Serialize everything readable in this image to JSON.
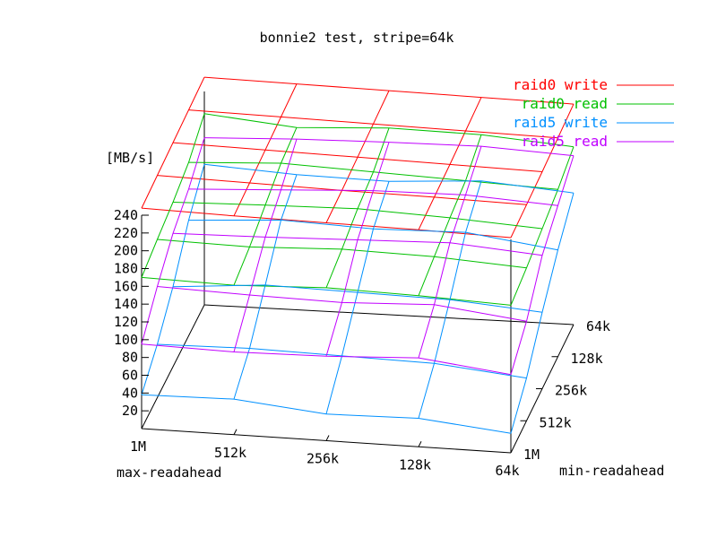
{
  "chart_data": {
    "type": "surface3d",
    "title": "bonnie2 test, stripe=64k",
    "xlabel": "max-readahead",
    "ylabel": "min-readahead",
    "zlabel": "[MB/s]",
    "x_categories": [
      "1M",
      "512k",
      "256k",
      "128k",
      "64k"
    ],
    "y_categories": [
      "1M",
      "512k",
      "256k",
      "128k",
      "64k"
    ],
    "zlim": [
      0,
      240
    ],
    "z_ticks": [
      20,
      40,
      60,
      80,
      100,
      120,
      140,
      160,
      180,
      200,
      220,
      240
    ],
    "grid": false,
    "legend_position": "top-right",
    "series": [
      {
        "name": "raid0 write",
        "color": "#ff0000",
        "z": [
          [
            248,
            246,
            245,
            244,
            242
          ],
          [
            250,
            248,
            246,
            245,
            243
          ],
          [
            252,
            250,
            248,
            246,
            244
          ],
          [
            254,
            252,
            250,
            248,
            246
          ],
          [
            256,
            254,
            252,
            250,
            248
          ]
        ]
      },
      {
        "name": "raid0 read",
        "color": "#00c000",
        "z": [
          [
            170,
            168,
            172,
            170,
            166
          ],
          [
            178,
            176,
            180,
            178,
            172
          ],
          [
            185,
            188,
            190,
            186,
            180
          ],
          [
            195,
            200,
            196,
            192,
            188
          ],
          [
            215,
            205,
            210,
            208,
            200
          ]
        ]
      },
      {
        "name": "raid5 write",
        "color": "#0090ff",
        "z": [
          [
            38,
            40,
            30,
            32,
            22
          ],
          [
            60,
            62,
            60,
            58,
            48
          ],
          [
            90,
            98,
            96,
            94,
            86
          ],
          [
            130,
            136,
            132,
            134,
            120
          ],
          [
            158,
            152,
            150,
            156,
            148
          ]
        ]
      },
      {
        "name": "raid5 read",
        "color": "#c000ff",
        "z": [
          [
            95,
            93,
            95,
            100,
            88
          ],
          [
            125,
            122,
            120,
            124,
            112
          ],
          [
            150,
            152,
            155,
            158,
            150
          ],
          [
            165,
            170,
            175,
            176,
            170
          ],
          [
            188,
            192,
            194,
            195,
            190
          ]
        ]
      }
    ]
  }
}
